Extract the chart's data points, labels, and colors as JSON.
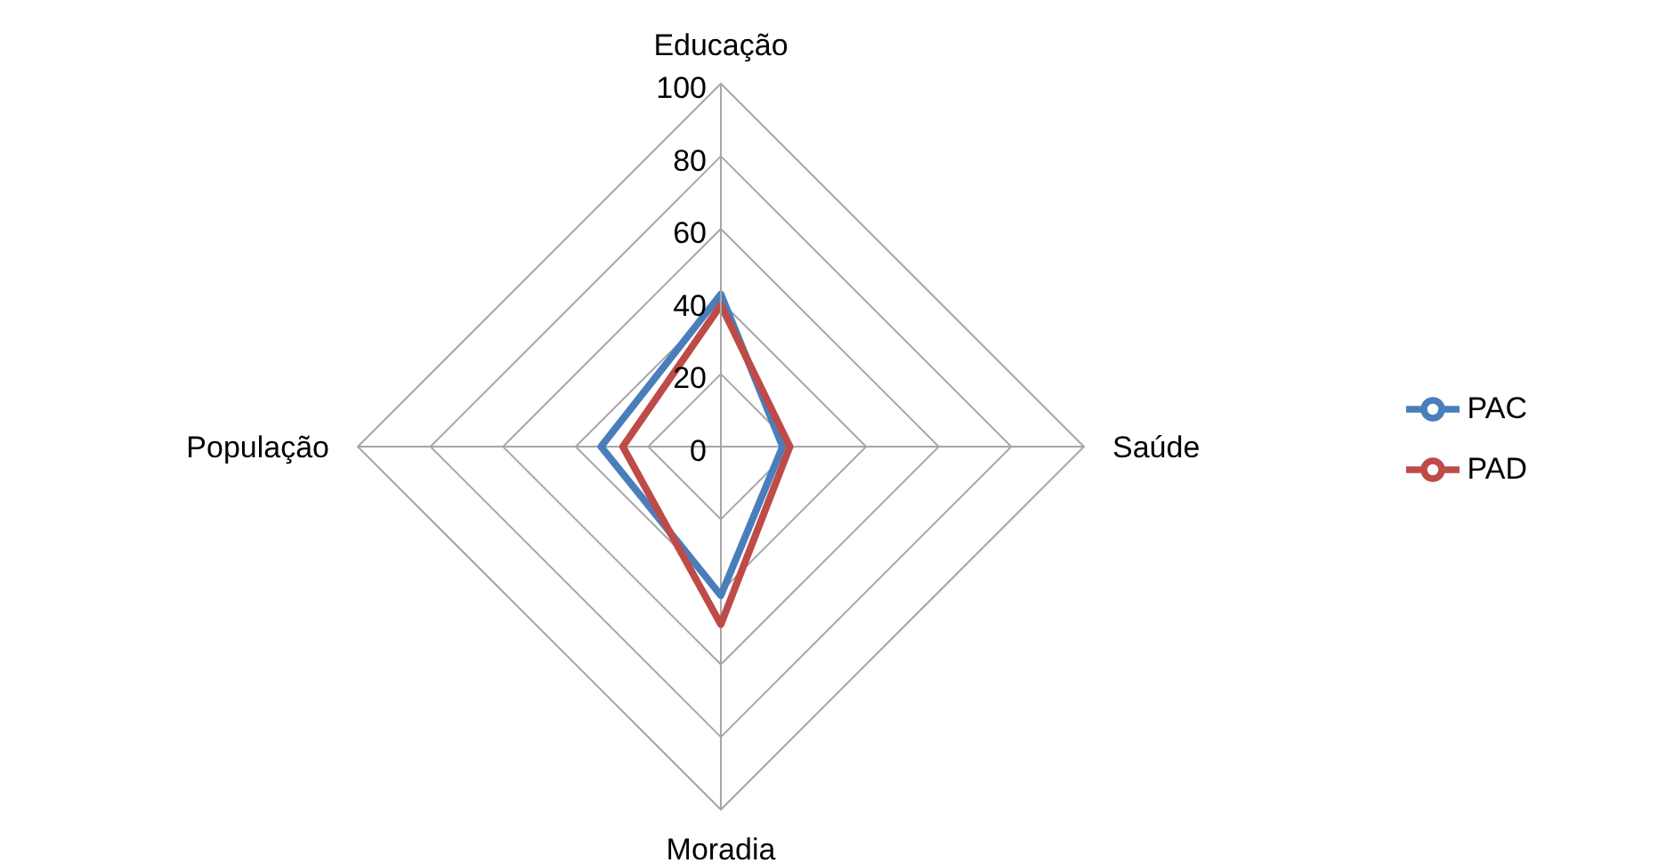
{
  "chart_data": {
    "type": "radar",
    "categories": [
      "Educação",
      "Saúde",
      "Moradia",
      "População"
    ],
    "series": [
      {
        "name": "PAC",
        "color": "#4a7ebb",
        "values": [
          42,
          17,
          41,
          33
        ]
      },
      {
        "name": "PAD",
        "color": "#be4b48",
        "values": [
          39,
          19,
          49,
          27
        ]
      }
    ],
    "ylim": [
      0,
      100
    ],
    "yticks": [
      0,
      20,
      40,
      60,
      80,
      100
    ],
    "grid": true,
    "legend": "right",
    "marker": "none"
  }
}
